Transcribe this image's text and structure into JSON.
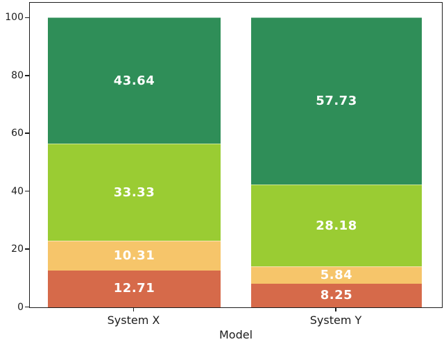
{
  "chart_data": {
    "type": "bar",
    "stacked": true,
    "title": "",
    "xlabel": "Model",
    "ylabel": "",
    "ylim": [
      0,
      105
    ],
    "yticks": [
      0,
      20,
      40,
      60,
      80,
      100
    ],
    "grid": false,
    "legend_position": "none",
    "categories": [
      "System X",
      "System Y"
    ],
    "series": [
      {
        "name": "bottom-segment-red-orange",
        "color": "#d66a4a",
        "values": [
          12.71,
          8.25
        ],
        "labels": [
          "12.71",
          "8.25"
        ]
      },
      {
        "name": "second-segment-amber",
        "color": "#f6c56a",
        "values": [
          10.31,
          5.84
        ],
        "labels": [
          "10.31",
          "5.84"
        ]
      },
      {
        "name": "third-segment-yellow-green",
        "color": "#9acc33",
        "values": [
          33.33,
          28.18
        ],
        "labels": [
          "33.33",
          "28.18"
        ]
      },
      {
        "name": "top-segment-green",
        "color": "#2f8e58",
        "values": [
          43.64,
          57.73
        ],
        "labels": [
          "43.64",
          "57.73"
        ]
      }
    ],
    "value_label_color": "#ffffff",
    "axis_color": "#1b1b1b"
  }
}
